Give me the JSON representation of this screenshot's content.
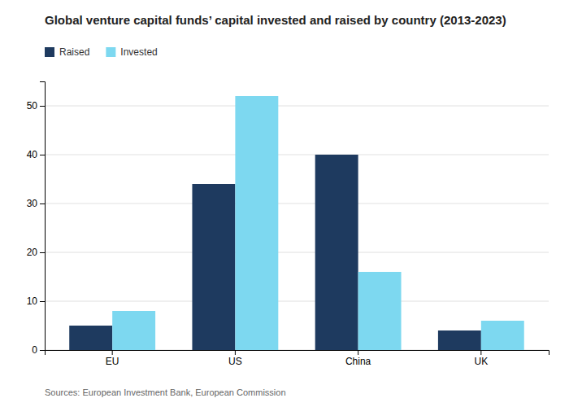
{
  "chart_data": {
    "type": "bar",
    "title": "Global venture capital funds’ capital invested and raised by country (2013-2023)",
    "categories": [
      "EU",
      "US",
      "China",
      "UK"
    ],
    "series": [
      {
        "name": "Raised",
        "color": "#1e3a5f",
        "values": [
          5,
          34,
          40,
          4
        ]
      },
      {
        "name": "Invested",
        "color": "#7dd8f0",
        "values": [
          8,
          52,
          16,
          6
        ]
      }
    ],
    "ylim": [
      0,
      55
    ],
    "yticks": [
      0,
      10,
      20,
      30,
      40,
      50
    ],
    "grid": true,
    "legend": "top-left",
    "annotations": [
      "Sources: European Investment Bank, European Commission"
    ]
  }
}
